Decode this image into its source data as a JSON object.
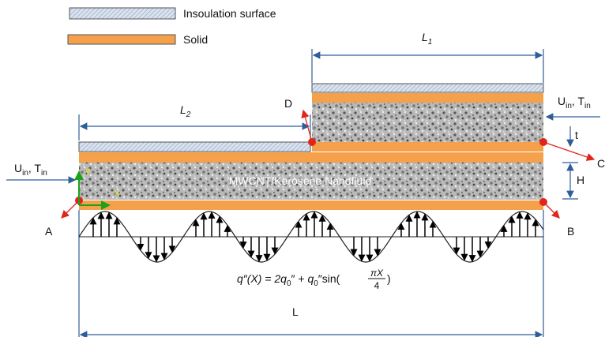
{
  "legend": {
    "items": [
      {
        "label": "Insoulation surface"
      },
      {
        "label": "Solid"
      }
    ]
  },
  "dimensions": {
    "L1": {
      "symbol": "L",
      "subscript": "1"
    },
    "L2": {
      "symbol": "L",
      "subscript": "2"
    },
    "t": "t",
    "H": "H",
    "L": "L"
  },
  "points": {
    "A": "A",
    "B": "B",
    "C": "C",
    "D": "D"
  },
  "inlets": [
    {
      "u": "U",
      "u_sub": "in",
      "sep": ", T",
      "t_sub": "in"
    },
    {
      "u": "U",
      "u_sub": "in",
      "sep": ", T",
      "t_sub": "in"
    }
  ],
  "fluid_label": "MWCNT/Kerosene Nanofluid",
  "axes": {
    "x": "x",
    "y": "y"
  },
  "heat_flux_formula": {
    "lhs": "q″(X) = 2",
    "q1": "q",
    "q1_sub": "0",
    "mid": "″ + ",
    "q2": "q",
    "q2_sub": "0",
    "sin": "″sin(",
    "numerator": "πX",
    "denominator": "4",
    "close": ")"
  }
}
